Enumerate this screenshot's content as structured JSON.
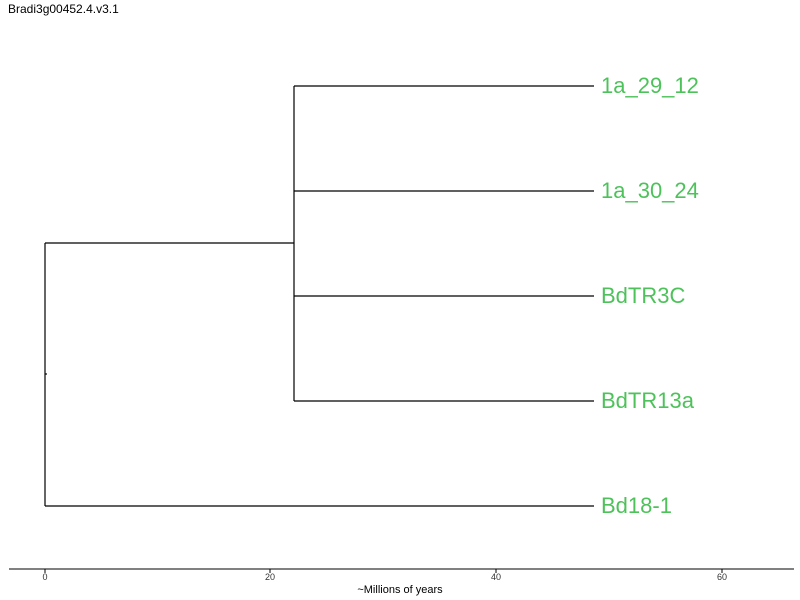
{
  "title": "Bradi3g00452.4.v3.1",
  "axis": {
    "label": "~Millions of years",
    "ticks": [
      "0",
      "20",
      "40",
      "60"
    ]
  },
  "leaves": [
    "1a_29_12",
    "1a_30_24",
    "BdTR3C",
    "BdTR13a",
    "Bd18-1"
  ],
  "colors": {
    "leaf_label": "#4dc25a",
    "branch": "#000000"
  }
}
